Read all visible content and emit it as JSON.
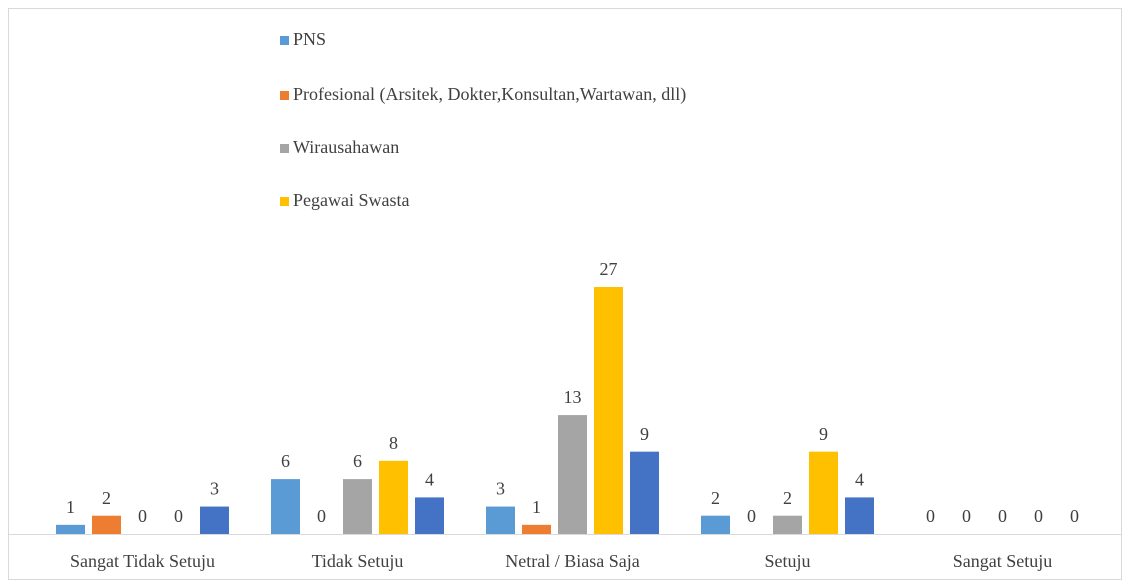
{
  "chart_data": {
    "type": "bar",
    "categories": [
      "Sangat Tidak Setuju",
      "Tidak Setuju",
      "Netral / Biasa Saja",
      "Setuju",
      "Sangat Setuju"
    ],
    "series": [
      {
        "name": "PNS",
        "color": "#5b9bd5",
        "values": [
          1,
          6,
          3,
          2,
          0
        ]
      },
      {
        "name": "Profesional (Arsitek, Dokter,Konsultan,Wartawan, dll)",
        "color": "#ed7d31",
        "values": [
          2,
          0,
          1,
          0,
          0
        ]
      },
      {
        "name": "Wirausahawan",
        "color": "#a5a5a5",
        "values": [
          0,
          6,
          13,
          2,
          0
        ]
      },
      {
        "name": "Pegawai Swasta",
        "color": "#ffc000",
        "values": [
          0,
          8,
          27,
          9,
          0
        ]
      },
      {
        "color": "#4472c4",
        "values": [
          3,
          4,
          9,
          4,
          0
        ]
      }
    ],
    "legend": "top"
  }
}
